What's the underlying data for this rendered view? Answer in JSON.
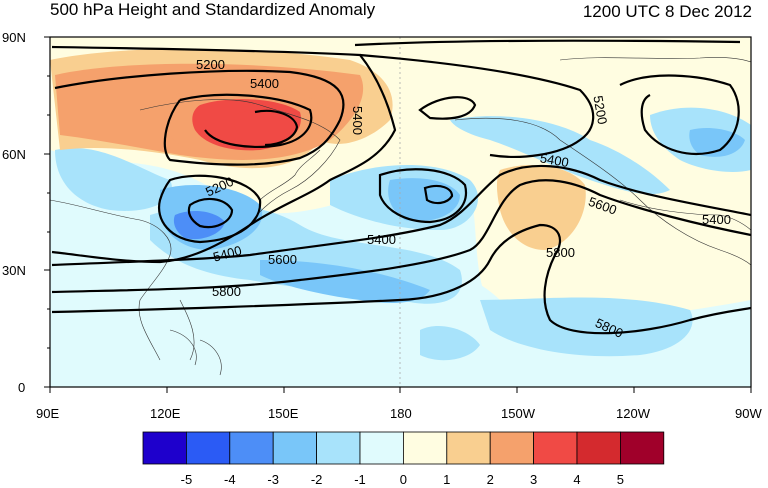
{
  "header": {
    "title": "500 hPa Height and Standardized Anomaly",
    "timestamp": "1200 UTC 8 Dec 2012"
  },
  "map": {
    "latitude_labels": [
      "90N",
      "60N",
      "30N",
      "0"
    ],
    "longitude_labels": [
      "90E",
      "120E",
      "150E",
      "180",
      "150W",
      "120W",
      "90W"
    ],
    "contour_labels": [
      {
        "text": "5200",
        "id": "c5200a"
      },
      {
        "text": "5400",
        "id": "c5400a"
      },
      {
        "text": "5400",
        "id": "c5400b"
      },
      {
        "text": "5200",
        "id": "c5200b"
      },
      {
        "text": "5200",
        "id": "c5200c"
      },
      {
        "text": "5400",
        "id": "c5400c"
      },
      {
        "text": "5400",
        "id": "c5400d"
      },
      {
        "text": "5600",
        "id": "c5600a"
      },
      {
        "text": "5800",
        "id": "c5800a"
      },
      {
        "text": "5400",
        "id": "c5400e"
      },
      {
        "text": "5600",
        "id": "c5600b"
      },
      {
        "text": "5400",
        "id": "c5400f"
      },
      {
        "text": "5800",
        "id": "c5800b"
      },
      {
        "text": "5800",
        "id": "c5800c"
      }
    ]
  },
  "colorbar": {
    "labels": [
      "-5",
      "-4",
      "-3",
      "-2",
      "-1",
      "0",
      "1",
      "2",
      "3",
      "4",
      "5"
    ],
    "colors": [
      "#1e00cc",
      "#2b5bf5",
      "#4d8ef7",
      "#79c6f9",
      "#a8e3fb",
      "#e0fbfd",
      "#fffde1",
      "#f9cf90",
      "#f5a16c",
      "#f04a45",
      "#d42a2e",
      "#a0002a"
    ]
  }
}
